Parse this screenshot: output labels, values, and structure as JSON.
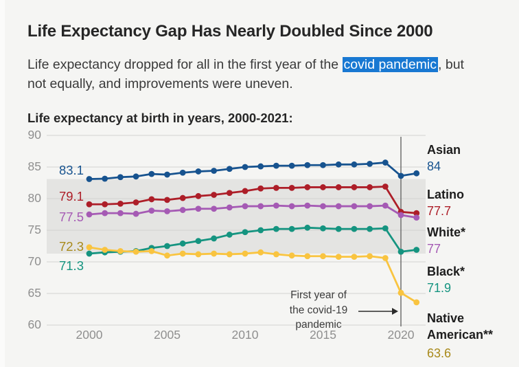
{
  "page": {
    "title": "Life Expectancy Gap Has Nearly Doubled Since 2000",
    "subtitle_before": "Life expectancy dropped for all in the first year of the ",
    "subtitle_highlight": "covid pandemic",
    "subtitle_after": ", but not equally, and improvements were uneven.",
    "chart_heading": "Life expectancy at birth in years, 2000-2021:"
  },
  "annotation": {
    "line1": "First year of",
    "line2": "the covid-19",
    "line3": "pandemic"
  },
  "colors": {
    "background": "#f5f5f3",
    "band": "#e4e4e2",
    "gridline": "#d2d2d0",
    "covid_line": "#6e6e6e",
    "axis_text": "#8f8f8f",
    "highlight_bg": "#1878d2",
    "highlight_text": "#ffffff",
    "arrow": "#2b2b2b"
  },
  "chart_data": {
    "type": "line",
    "title": "Life expectancy at birth in years, 2000-2021",
    "ylabel": "Life expectancy at birth (years)",
    "ylim": [
      60,
      90
    ],
    "xlim": [
      2000,
      2021
    ],
    "y_ticks": [
      90,
      85,
      80,
      75,
      70,
      65,
      60
    ],
    "x_ticks": [
      2000,
      2005,
      2010,
      2015,
      2020
    ],
    "grid": true,
    "band_range": {
      "from": 71.3,
      "to": 83.1
    },
    "covid_line_year": 2020,
    "annotation_text": "First year of the covid-19 pandemic",
    "x": [
      2000,
      2001,
      2002,
      2003,
      2004,
      2005,
      2006,
      2007,
      2008,
      2009,
      2010,
      2011,
      2012,
      2013,
      2014,
      2015,
      2016,
      2017,
      2018,
      2019,
      2020,
      2021
    ],
    "series": [
      {
        "name": "Asian",
        "color": "#17538f",
        "label_color": "#17538f",
        "start_label": "83.1",
        "end_label": "84",
        "values": [
          83.1,
          83.15,
          83.4,
          83.5,
          83.9,
          83.8,
          84.1,
          84.3,
          84.4,
          84.7,
          85.0,
          85.1,
          85.2,
          85.2,
          85.3,
          85.3,
          85.4,
          85.4,
          85.5,
          85.7,
          83.6,
          84.0
        ]
      },
      {
        "name": "Latino",
        "color": "#ad1e28",
        "label_color": "#ad1e28",
        "start_label": "79.1",
        "end_label": "77.7",
        "values": [
          79.1,
          79.1,
          79.2,
          79.4,
          79.9,
          79.8,
          80.1,
          80.4,
          80.6,
          80.9,
          81.2,
          81.6,
          81.7,
          81.7,
          81.8,
          81.8,
          81.8,
          81.8,
          81.8,
          81.9,
          77.9,
          77.7
        ]
      },
      {
        "name": "White*",
        "color": "#a55ab4",
        "label_color": "#a55ab4",
        "start_label": "77.5",
        "end_label": "77",
        "values": [
          77.5,
          77.7,
          77.7,
          77.6,
          78.1,
          78.0,
          78.2,
          78.4,
          78.4,
          78.6,
          78.8,
          78.8,
          78.9,
          78.8,
          78.9,
          78.8,
          78.8,
          78.8,
          78.8,
          78.9,
          77.4,
          77.0
        ]
      },
      {
        "name": "Black*",
        "color": "#159480",
        "label_color": "#159480",
        "start_label": "71.3",
        "end_label": "71.9",
        "values": [
          71.3,
          71.5,
          71.6,
          71.7,
          72.2,
          72.5,
          72.9,
          73.3,
          73.7,
          74.3,
          74.7,
          75.0,
          75.2,
          75.2,
          75.4,
          75.3,
          75.2,
          75.2,
          75.2,
          75.3,
          71.6,
          71.9
        ]
      },
      {
        "name": "Native American**",
        "color": "#f9c440",
        "label_color": "#a8891a",
        "start_label": "72.3",
        "end_label": "63.6",
        "values": [
          72.3,
          71.9,
          71.7,
          71.6,
          71.7,
          71.0,
          71.3,
          71.2,
          71.3,
          71.2,
          71.3,
          71.5,
          71.2,
          71.0,
          70.9,
          70.9,
          70.8,
          70.8,
          70.9,
          70.6,
          65.1,
          63.6
        ]
      }
    ]
  }
}
